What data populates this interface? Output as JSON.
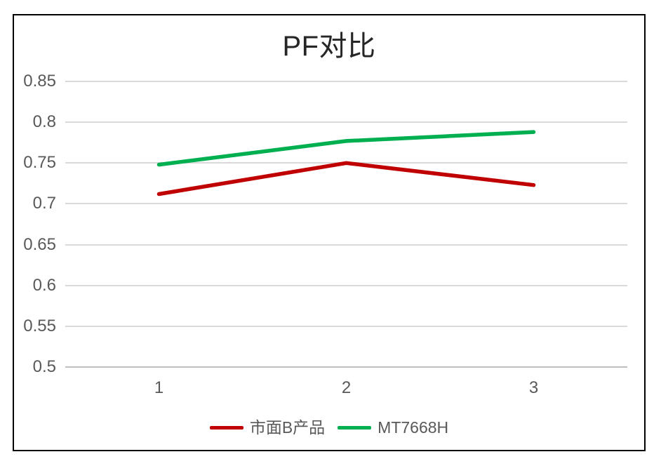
{
  "chart_data": {
    "type": "line",
    "title": "PF对比",
    "categories": [
      "1",
      "2",
      "3"
    ],
    "series": [
      {
        "name": "市面B产品",
        "color": "#C00000",
        "values": [
          0.712,
          0.75,
          0.723
        ]
      },
      {
        "name": "MT7668H",
        "color": "#00B050",
        "values": [
          0.748,
          0.777,
          0.788
        ]
      }
    ],
    "ylim": [
      0.5,
      0.85
    ],
    "ytick_step": 0.05,
    "yticks_top_to_bottom": [
      "0.85",
      "0.8",
      "0.75",
      "0.7",
      "0.65",
      "0.6",
      "0.55",
      "0.5"
    ],
    "grid": true,
    "legend_position": "bottom",
    "colors": {
      "gridline": "#D9D9D9",
      "axis_line": "#BFBFBF",
      "tick_text": "#595959",
      "title_text": "#262626",
      "chart_border": "#000000"
    }
  }
}
